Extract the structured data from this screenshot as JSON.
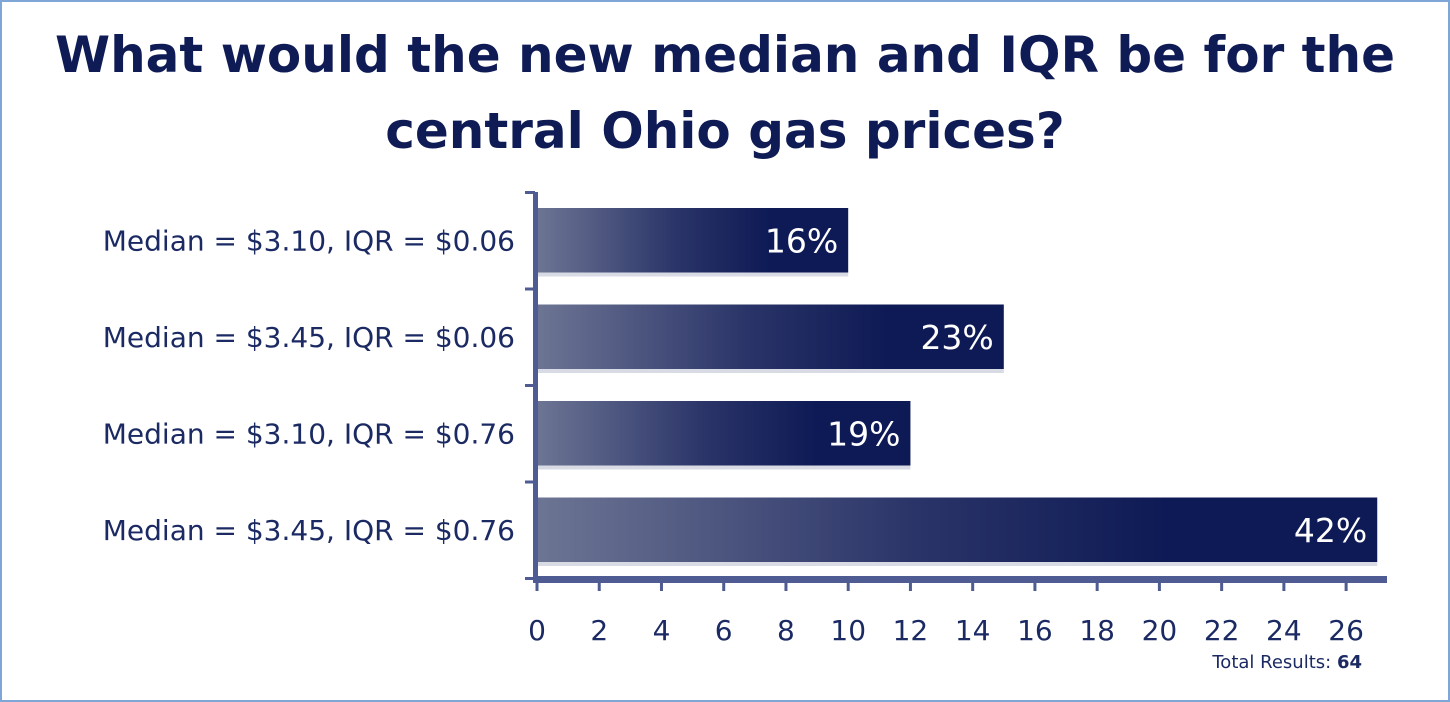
{
  "chart_data": {
    "type": "bar",
    "orientation": "horizontal",
    "title": "What would the new median and IQR be for the central Ohio gas prices?",
    "title_lines": [
      "What would the new median and IQR be for the",
      "central Ohio gas prices?"
    ],
    "categories": [
      "Median = $3.10, IQR = $0.06",
      "Median = $3.45, IQR = $0.06",
      "Median = $3.10, IQR = $0.76",
      "Median = $3.45, IQR = $0.76"
    ],
    "values": [
      10,
      15,
      12,
      27
    ],
    "data_labels": [
      "16%",
      "23%",
      "19%",
      "42%"
    ],
    "xlim": [
      0,
      27
    ],
    "xticks": [
      "0",
      "2",
      "4",
      "6",
      "8",
      "10",
      "12",
      "14",
      "16",
      "18",
      "20",
      "22",
      "24",
      "26"
    ],
    "xlabel": "",
    "ylabel": "",
    "grid": false,
    "total_label": "Total Results:",
    "total_value": "64",
    "colors": {
      "bar_dark": "#0e1a55",
      "bar_light": "#6d7594",
      "axis": "#4f5c93",
      "text": "#1b2a63",
      "border": "#7ea6d6"
    }
  }
}
